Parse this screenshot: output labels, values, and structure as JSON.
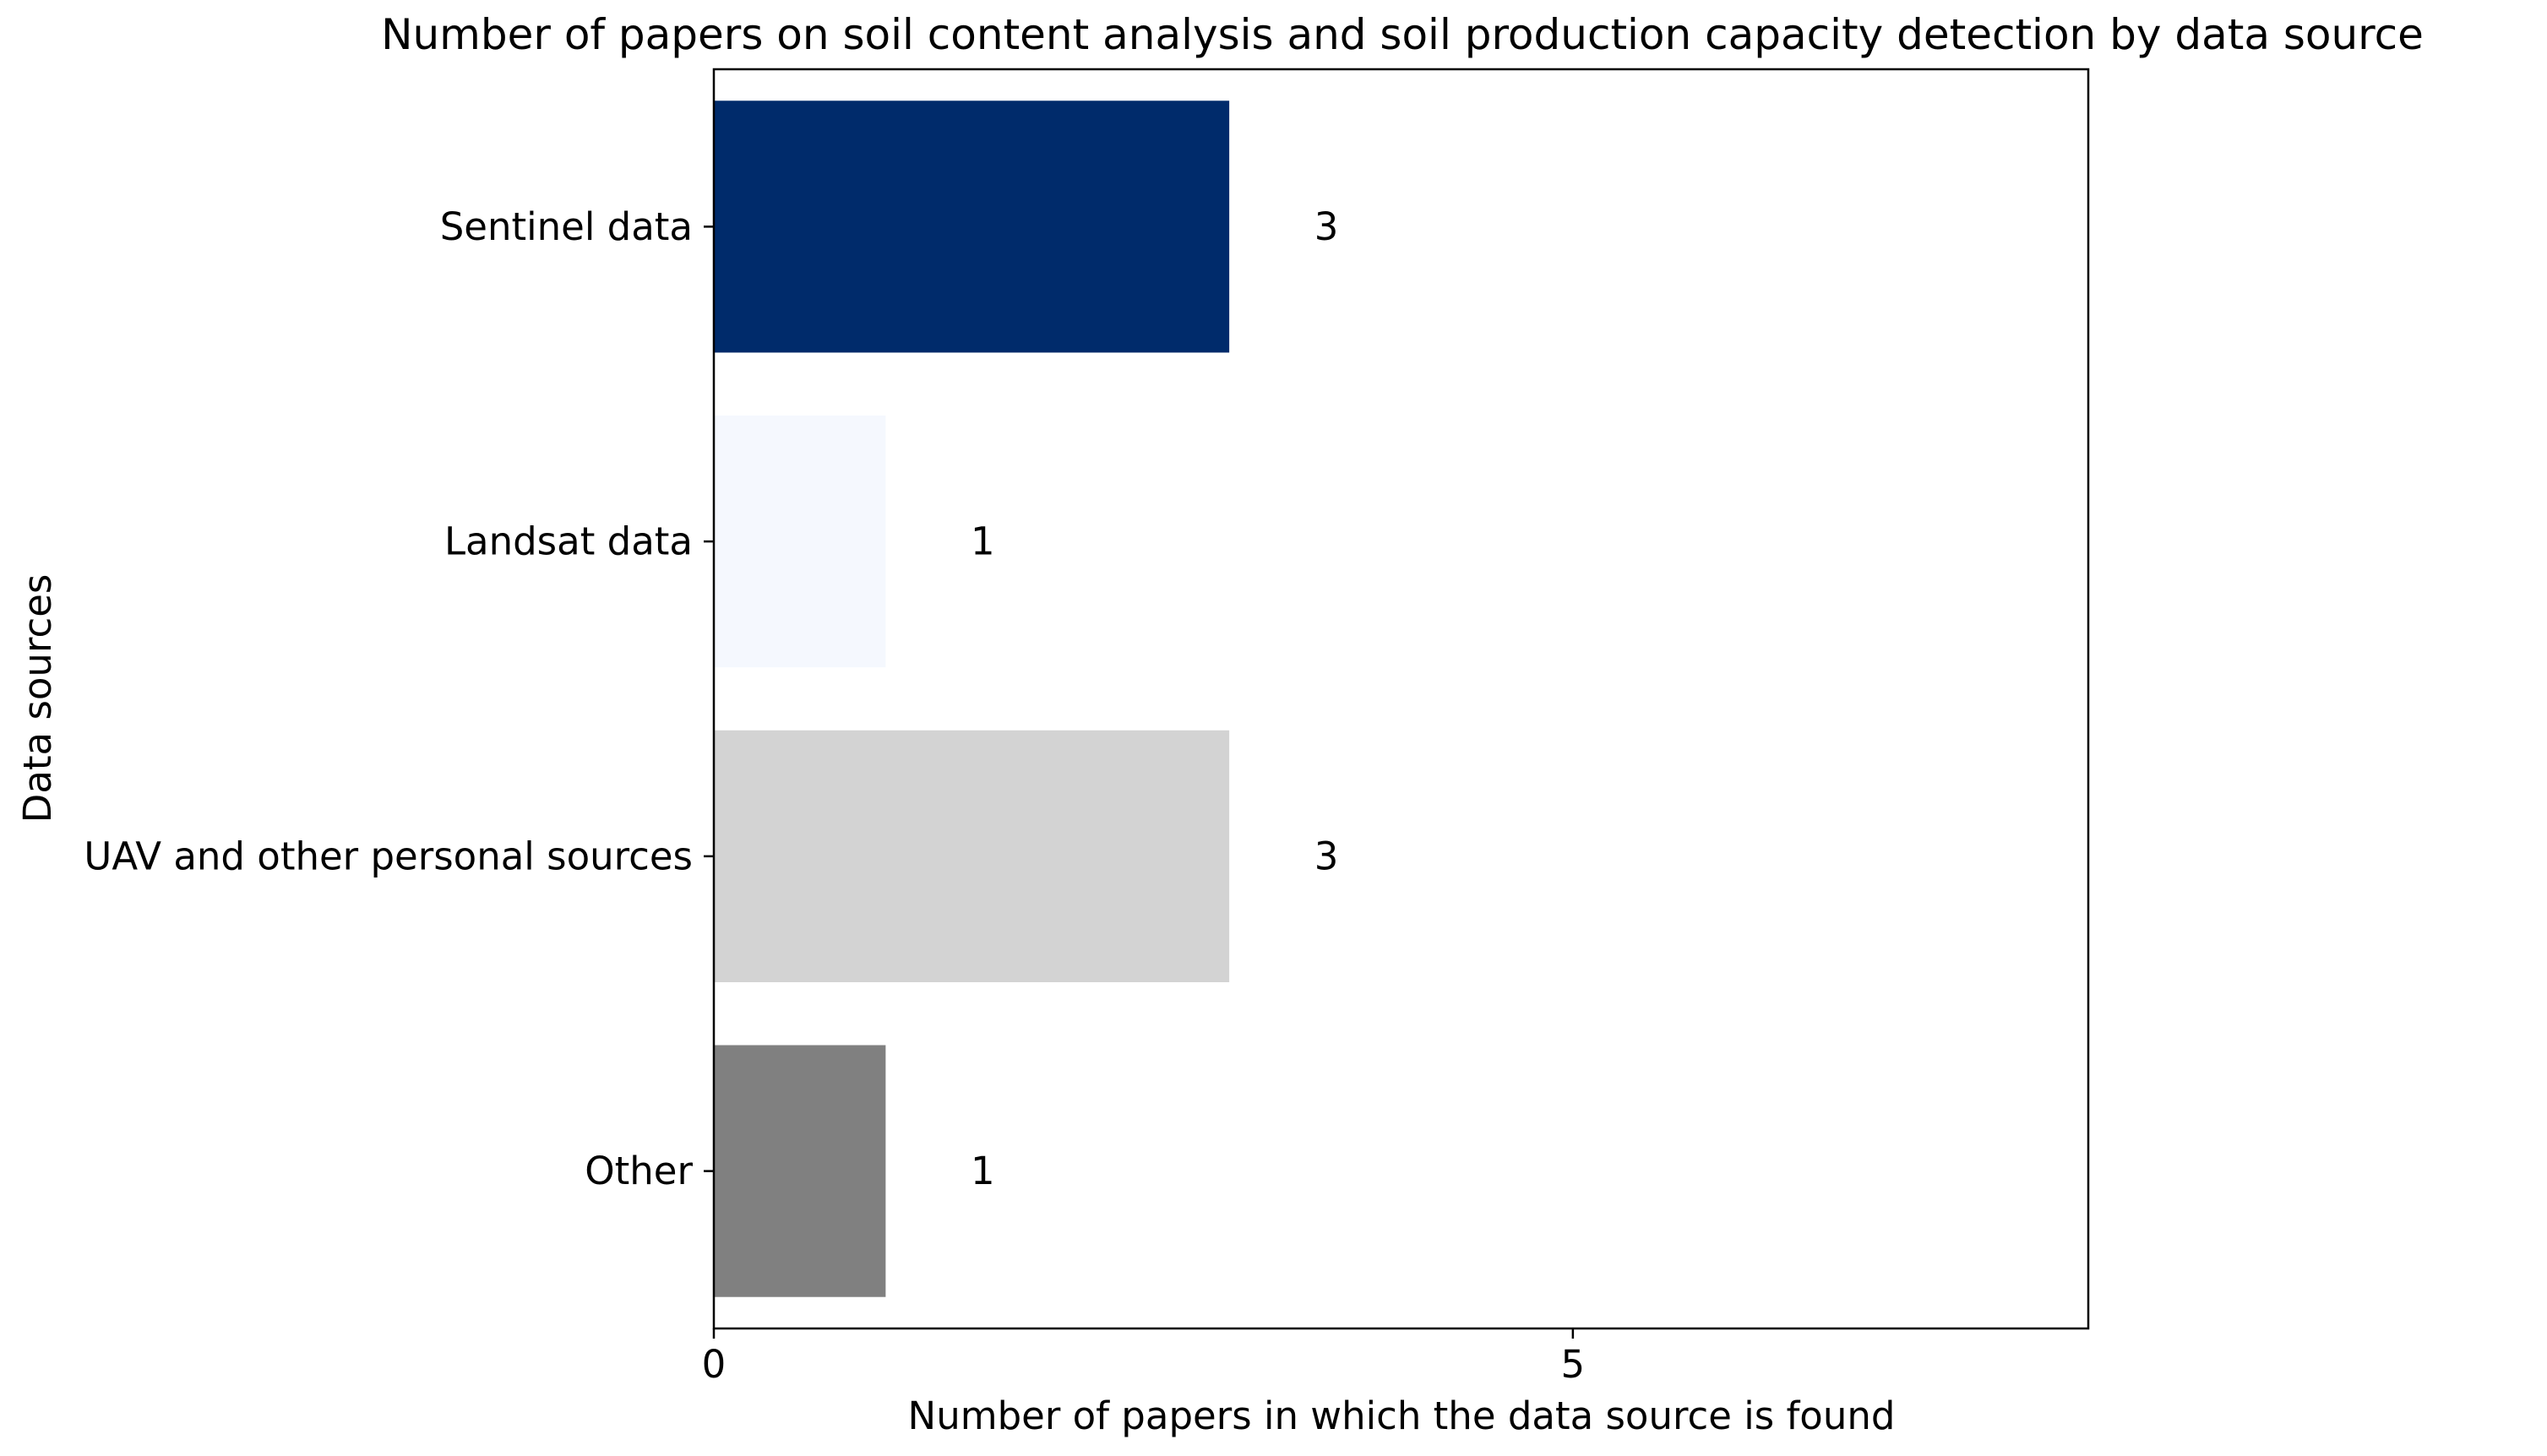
{
  "chart_data": {
    "type": "bar",
    "orientation": "horizontal",
    "title": "Number of papers on soil content analysis and soil production capacity detection by data source",
    "xlabel": "Number of papers in which the data source is found",
    "ylabel": "Data sources",
    "categories": [
      "Sentinel data",
      "Landsat data",
      "UAV and other personal sources",
      "Other"
    ],
    "values": [
      3,
      1,
      3,
      1
    ],
    "value_labels": [
      "3",
      "1",
      "3",
      "1"
    ],
    "colors": [
      "#002b6b",
      "#f5f8fe",
      "#d3d3d3",
      "#808080"
    ],
    "xlim": [
      0,
      8
    ],
    "xticks": [
      0,
      5
    ],
    "xtick_labels": [
      "0",
      "5"
    ],
    "grid": false,
    "legend": "none"
  }
}
